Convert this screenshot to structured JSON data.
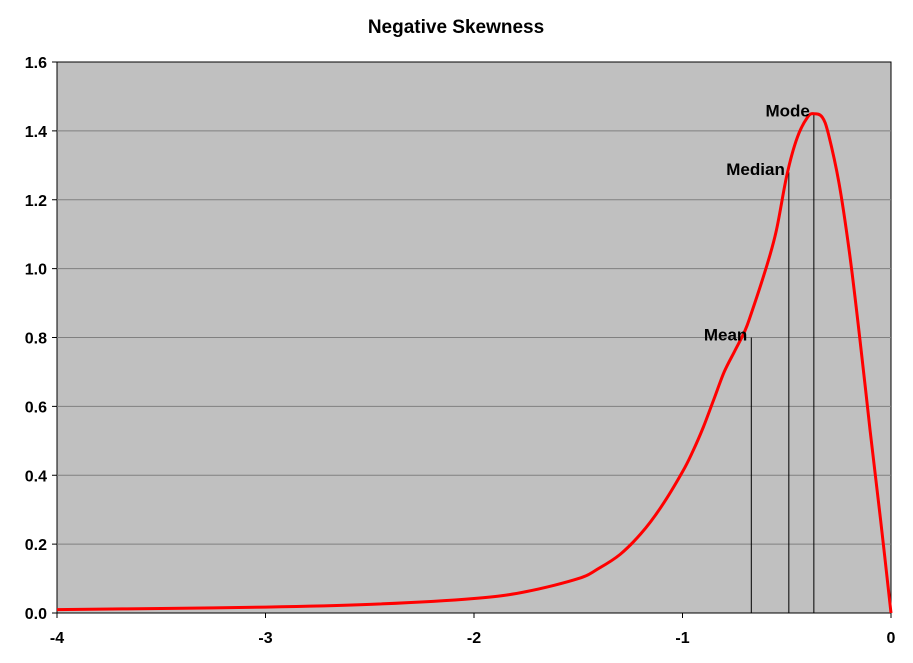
{
  "chart_data": {
    "type": "line",
    "title": "Negative Skewness",
    "xlabel": "",
    "ylabel": "",
    "xlim": [
      -4,
      0
    ],
    "ylim": [
      0,
      1.6
    ],
    "x_ticks": [
      "-4",
      "-3",
      "-2",
      "-1",
      "0"
    ],
    "y_ticks": [
      "0.0",
      "0.2",
      "0.4",
      "0.6",
      "0.8",
      "1.0",
      "1.2",
      "1.4",
      "1.6"
    ],
    "grid": true,
    "plot_background": "#C0C0C0",
    "series": [
      {
        "color": "#FF0000",
        "x": [
          -4.0,
          -3.5,
          -3.0,
          -2.5,
          -2.0,
          -1.75,
          -1.5,
          -1.4,
          -1.3,
          -1.2,
          -1.1,
          -1.0,
          -0.95,
          -0.9,
          -0.85,
          -0.8,
          -0.75,
          -0.7,
          -0.67,
          -0.6,
          -0.55,
          -0.5,
          -0.45,
          -0.4,
          -0.37,
          -0.33,
          -0.3,
          -0.25,
          -0.2,
          -0.15,
          -0.1,
          -0.05,
          0.0
        ],
        "y": [
          0.01,
          0.013,
          0.017,
          0.025,
          0.042,
          0.062,
          0.1,
          0.13,
          0.17,
          0.23,
          0.31,
          0.41,
          0.47,
          0.54,
          0.62,
          0.7,
          0.76,
          0.82,
          0.87,
          1.0,
          1.11,
          1.27,
          1.38,
          1.44,
          1.45,
          1.44,
          1.39,
          1.25,
          1.05,
          0.8,
          0.53,
          0.27,
          0.0
        ]
      }
    ],
    "annotations": [
      {
        "label": "Mode",
        "x": -0.37,
        "y": 1.45
      },
      {
        "label": "Median",
        "x": -0.49,
        "y": 1.28
      },
      {
        "label": "Mean",
        "x": -0.67,
        "y": 0.8
      }
    ]
  }
}
